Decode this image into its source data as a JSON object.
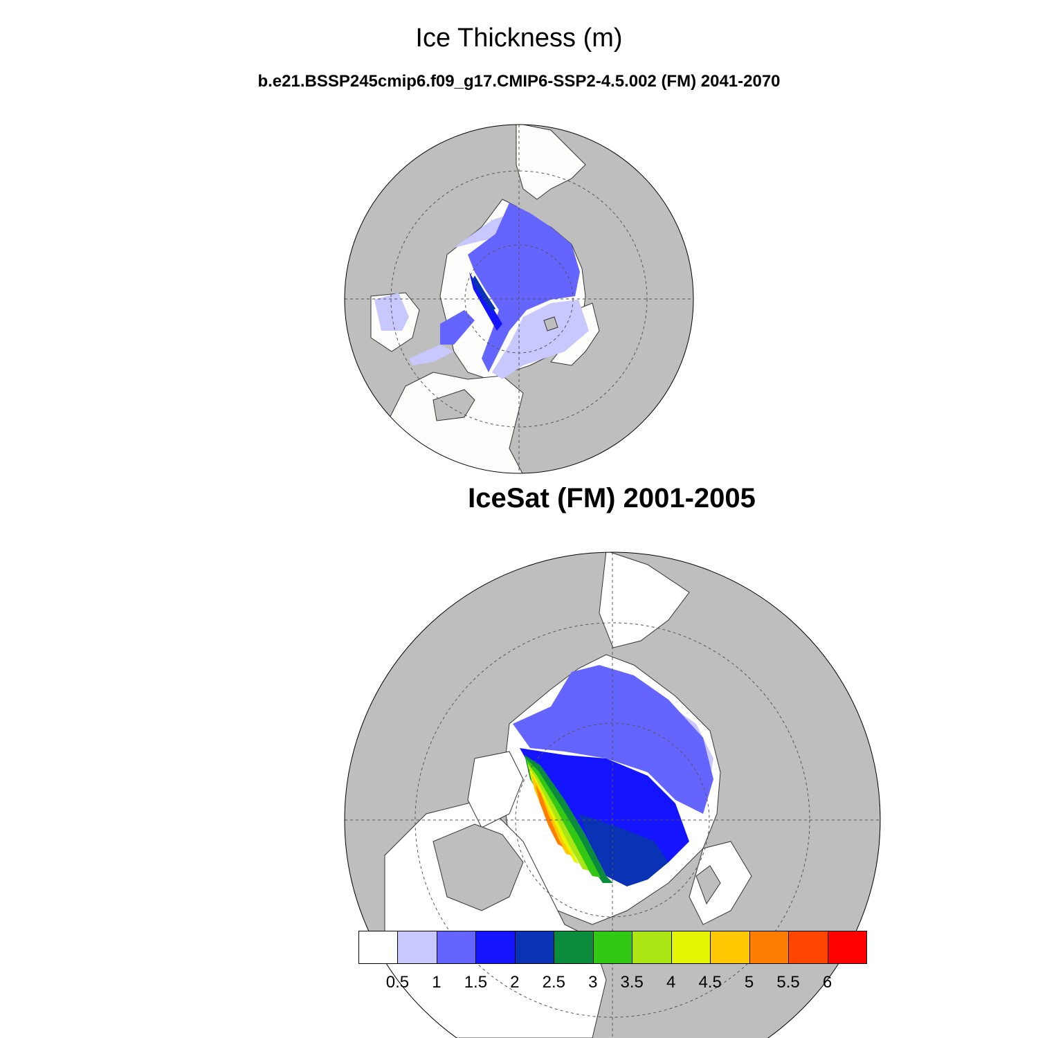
{
  "title": "Ice Thickness (m)",
  "subtitle": "b.e21.BSSP245cmip6.f09_g17.CMIP6-SSP2-4.5.002 (FM) 2041-2070",
  "obs_title": "IceSat (FM) 2001-2005",
  "colors": {
    "land": "#bebebe",
    "ocean": "#fdfdfb",
    "coast": "#333333"
  },
  "colorbar": {
    "labels": [
      "0.5",
      "1",
      "1.5",
      "2",
      "2.5",
      "3",
      "3.5",
      "4",
      "4.5",
      "5",
      "5.5",
      "6"
    ],
    "colors": [
      "#ffffff",
      "#c8c8ff",
      "#6464ff",
      "#1414ff",
      "#0a32b4",
      "#0a8c3c",
      "#32c814",
      "#aae614",
      "#e6f500",
      "#ffc800",
      "#ff7d00",
      "#ff4600",
      "#ff0000"
    ]
  }
}
